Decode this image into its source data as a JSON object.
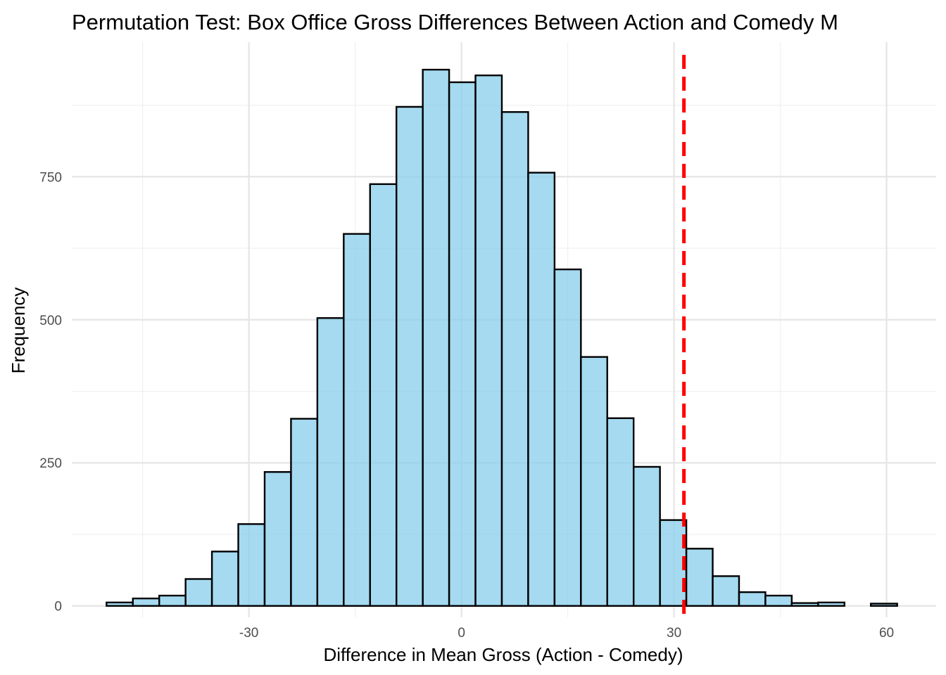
{
  "chart_data": {
    "type": "histogram",
    "title": "Permutation Test: Box Office Gross Differences Between Action and Comedy M",
    "xlabel": "Difference in Mean Gross (Action - Comedy)",
    "ylabel": "Frequency",
    "xlim": [
      -55,
      67
    ],
    "ylim": [
      -20,
      985
    ],
    "x_ticks": [
      -30,
      0,
      30,
      60
    ],
    "x_tick_labels": [
      "-30",
      "0",
      "30",
      "60"
    ],
    "y_ticks": [
      0,
      250,
      500,
      750
    ],
    "y_tick_labels": [
      "0",
      "250",
      "500",
      "750"
    ],
    "grid": true,
    "bin_start": -50.1,
    "bin_width": 3.72,
    "counts": [
      6,
      13,
      18,
      47,
      95,
      143,
      234,
      327,
      503,
      650,
      737,
      872,
      937,
      915,
      927,
      863,
      757,
      588,
      435,
      328,
      243,
      150,
      100,
      52,
      24,
      18,
      5,
      6,
      0,
      4
    ],
    "observed_difference": 31.4,
    "colors": {
      "bar_fill": "#87ceeb",
      "bar_stroke": "#000000",
      "reference_line": "#ff0000"
    }
  }
}
